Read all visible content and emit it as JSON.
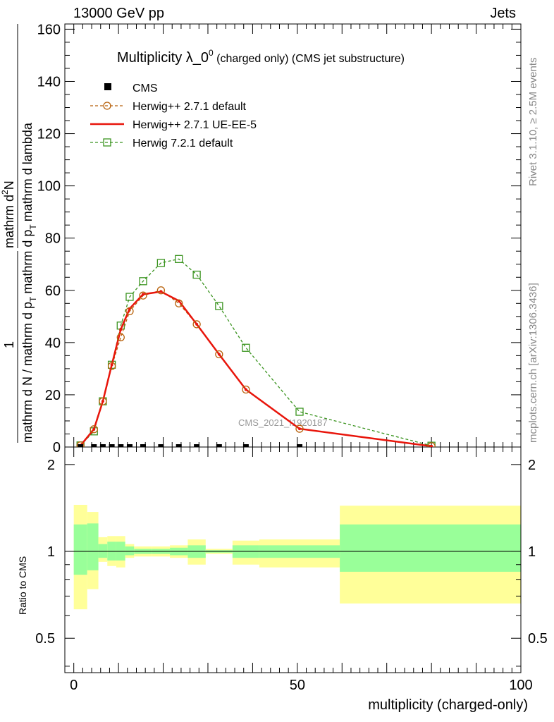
{
  "header": {
    "left": "13000 GeV pp",
    "right": "Jets"
  },
  "side_labels": {
    "rivet": "Rivet 3.1.10, ≥ 2.5M events",
    "mcplots": "mcplots.cern.ch [arXiv:1306.3436]"
  },
  "chart_data": {
    "type": "line",
    "title_main": "Multiplicity λ_0",
    "title_sup": "0",
    "title_sub": " (charged only) (CMS jet substructure)",
    "watermark": "CMS_2021_I1920187",
    "xlabel": "multiplicity (charged-only)",
    "ylabel_top": {
      "frac_num": "1",
      "frac_den": "mathrm d N / mathrm d p",
      "frac_den_sub": "T",
      "frac_den_tail": " mathrm d lambda",
      "rest_a": "mathrm d",
      "rest_b": "N",
      "rest_c": "mathrm d p",
      "rest_c_sub": "T",
      "rest_d": "mathrm d lambda",
      "line1": "mathrm d N / mathrm d p",
      "line2": "mathrm d p"
    },
    "ylabel_top_texts": {
      "num": "1",
      "den": "mathrm d N / mathrm d p",
      "den_sub": "T",
      "den_tail": "mathrm d lambda",
      "rhs_top": "mathrm d",
      "rhs_top_sup": "2",
      "rhs_top_tail": "N",
      "rhs_bottom": "mathrm d p",
      "rhs_bottom_sub": "T",
      "rhs_bottom_tail": "mathrm d lambda"
    },
    "ylabel_ratio": "Ratio to CMS",
    "xlim": [
      -2,
      100
    ],
    "ylim": [
      0,
      162
    ],
    "x_ticks": [
      0,
      50,
      100
    ],
    "y_ticks": [
      0,
      20,
      40,
      60,
      80,
      100,
      120,
      140,
      160
    ],
    "ratio_ticks": [
      0.5,
      1,
      2
    ],
    "ratio_ylim": [
      0.38,
      2.3
    ],
    "legend": [
      {
        "name": "CMS",
        "style": "data"
      },
      {
        "name": "Herwig++ 2.7.1 default",
        "style": "orange-circle"
      },
      {
        "name": "Herwig++ 2.7.1 UE-EE-5",
        "style": "red-line"
      },
      {
        "name": "Herwig 7.2.1 default",
        "style": "green-square"
      }
    ],
    "colors": {
      "orange": "#b8620c",
      "red": "#e8150b",
      "green": "#3b9420",
      "band_inner": "#99ff99",
      "band_outer": "#ffff99"
    },
    "series": [
      {
        "name": "CMS",
        "x": [
          1.5,
          4.5,
          6.5,
          8.5,
          10.5,
          12.5,
          15.5,
          19.5,
          23.5,
          27.5,
          32.5,
          38.5,
          50.5
        ],
        "values": [
          0,
          0,
          0,
          0,
          0,
          0,
          0,
          0,
          0,
          0,
          0,
          0,
          0
        ]
      },
      {
        "name": "Herwig++ 2.7.1 default",
        "x": [
          1.5,
          4.5,
          6.5,
          8.5,
          10.5,
          12.5,
          15.5,
          19.5,
          23.5,
          27.5,
          32.5,
          38.5,
          50.5,
          80
        ],
        "values": [
          0.6,
          6.8,
          17.5,
          31,
          42,
          52,
          58,
          60,
          55,
          47,
          35.5,
          22,
          7,
          0.3
        ]
      },
      {
        "name": "Herwig++ 2.7.1 UE-EE-5",
        "x": [
          1.5,
          4.5,
          6.5,
          8.5,
          10.5,
          12.5,
          15.5,
          19.5,
          23.5,
          27.5,
          32.5,
          38.5,
          50.5,
          80
        ],
        "values": [
          0.6,
          6.8,
          17.5,
          31.5,
          45,
          53,
          58.5,
          59.5,
          56,
          47,
          35.5,
          22,
          7,
          0.3
        ]
      },
      {
        "name": "Herwig 7.2.1 default",
        "x": [
          1.5,
          4.5,
          6.5,
          8.5,
          10.5,
          12.5,
          15.5,
          19.5,
          23.5,
          27.5,
          32.5,
          38.5,
          50.5,
          80
        ],
        "values": [
          0.6,
          6,
          17.5,
          31.5,
          46.5,
          57.5,
          63.5,
          70.5,
          72,
          66,
          54,
          38,
          13.5,
          0.5
        ]
      }
    ],
    "ratio_bands": [
      {
        "x0": 0,
        "x1": 3,
        "inner": [
          0.83,
          1.24
        ],
        "outer": [
          0.63,
          1.45
        ]
      },
      {
        "x0": 3,
        "x1": 5.5,
        "inner": [
          0.86,
          1.25
        ],
        "outer": [
          0.74,
          1.37
        ]
      },
      {
        "x0": 5.5,
        "x1": 7.5,
        "inner": [
          0.95,
          1.06
        ],
        "outer": [
          0.92,
          1.12
        ]
      },
      {
        "x0": 7.5,
        "x1": 9.5,
        "inner": [
          0.93,
          1.08
        ],
        "outer": [
          0.89,
          1.13
        ]
      },
      {
        "x0": 9.5,
        "x1": 11.5,
        "inner": [
          0.93,
          1.08
        ],
        "outer": [
          0.88,
          1.13
        ]
      },
      {
        "x0": 11.5,
        "x1": 13.5,
        "inner": [
          0.97,
          1.04
        ],
        "outer": [
          0.95,
          1.06
        ]
      },
      {
        "x0": 13.5,
        "x1": 17.5,
        "inner": [
          0.98,
          1.02
        ],
        "outer": [
          0.96,
          1.04
        ]
      },
      {
        "x0": 17.5,
        "x1": 21.5,
        "inner": [
          0.98,
          1.02
        ],
        "outer": [
          0.96,
          1.04
        ]
      },
      {
        "x0": 21.5,
        "x1": 25.5,
        "inner": [
          0.97,
          1.03
        ],
        "outer": [
          0.95,
          1.05
        ]
      },
      {
        "x0": 25.5,
        "x1": 29.5,
        "inner": [
          0.95,
          1.05
        ],
        "outer": [
          0.9,
          1.1
        ]
      },
      {
        "x0": 29.5,
        "x1": 35.5,
        "inner": [
          0.99,
          1.01
        ],
        "outer": [
          0.98,
          1.02
        ]
      },
      {
        "x0": 35.5,
        "x1": 41.5,
        "inner": [
          0.95,
          1.05
        ],
        "outer": [
          0.9,
          1.09
        ]
      },
      {
        "x0": 41.5,
        "x1": 59.5,
        "inner": [
          0.95,
          1.05
        ],
        "outer": [
          0.88,
          1.1
        ]
      },
      {
        "x0": 59.5,
        "x1": 100,
        "inner": [
          0.85,
          1.24
        ],
        "outer": [
          0.66,
          1.44
        ]
      }
    ]
  }
}
